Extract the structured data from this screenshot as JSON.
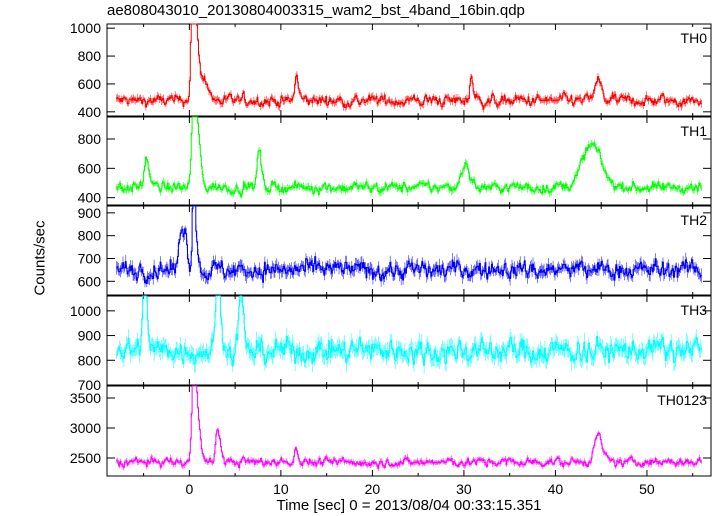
{
  "chart_data": {
    "type": "line",
    "title": "ae808043010_20130804003315_wam2_bst_4band_16bin.qdp",
    "xlabel": "Time [sec] 0 = 2013/08/04 00:33:15.351",
    "ylabel": "Counts/sec",
    "xlim": [
      -9,
      57
    ],
    "x_ticks": [
      0,
      10,
      20,
      30,
      40,
      50
    ],
    "grid": false,
    "error_bars": true,
    "panels": [
      {
        "name": "TH0",
        "color": "#ff0000",
        "ylim": [
          370,
          1030
        ],
        "y_ticks": [
          400,
          600,
          800,
          1000
        ],
        "base": 480,
        "noise": 45,
        "features": [
          [
            0.3,
            620,
            0.25
          ],
          [
            0.8,
            150,
            0.3
          ],
          [
            1.6,
            70,
            0.5
          ],
          [
            11.6,
            110,
            0.2
          ],
          [
            30.7,
            110,
            0.2
          ],
          [
            44.5,
            70,
            0.5
          ]
        ],
        "spans": [
          [
            -8,
            56
          ]
        ]
      },
      {
        "name": "TH1",
        "color": "#00ff00",
        "ylim": [
          350,
          950
        ],
        "y_ticks": [
          400,
          600,
          800
        ],
        "base": 470,
        "noise": 40,
        "features": [
          [
            0.4,
            400,
            0.3
          ],
          [
            0.9,
            120,
            0.3
          ],
          [
            -4.8,
            110,
            0.3
          ],
          [
            7.5,
            150,
            0.25
          ],
          [
            30.0,
            80,
            0.6
          ],
          [
            43.8,
            130,
            1.5
          ]
        ],
        "spans": [
          [
            -8,
            56
          ]
        ]
      },
      {
        "name": "TH2",
        "color": "#0000ff",
        "ylim": [
          540,
          930
        ],
        "y_ticks": [
          600,
          700,
          800,
          900
        ],
        "base": 650,
        "noise": 45,
        "features": [
          [
            0.4,
            250,
            0.2
          ],
          [
            -1.0,
            100,
            0.3
          ],
          [
            -0.5,
            60,
            0.3
          ]
        ],
        "spans": [
          [
            -8,
            56
          ]
        ]
      },
      {
        "name": "TH3",
        "color": "#00ffff",
        "ylim": [
          700,
          1060
        ],
        "y_ticks": [
          700,
          800,
          900,
          1000
        ],
        "base": 840,
        "noise": 55,
        "features": [
          [
            -5.0,
            160,
            0.3
          ],
          [
            3.0,
            200,
            0.3
          ],
          [
            5.5,
            120,
            0.3
          ]
        ],
        "spans": [
          [
            -8,
            56
          ]
        ]
      },
      {
        "name": "TH0123",
        "color": "#ff00ff",
        "ylim": [
          2200,
          3700
        ],
        "y_ticks": [
          2500,
          3000,
          3500
        ],
        "base": 2430,
        "noise": 80,
        "features": [
          [
            0.4,
            1200,
            0.25
          ],
          [
            0.9,
            280,
            0.3
          ],
          [
            3.0,
            300,
            0.3
          ],
          [
            11.6,
            150,
            0.2
          ],
          [
            44.5,
            200,
            0.6
          ]
        ],
        "spans": [
          [
            -8,
            56
          ]
        ]
      }
    ]
  }
}
